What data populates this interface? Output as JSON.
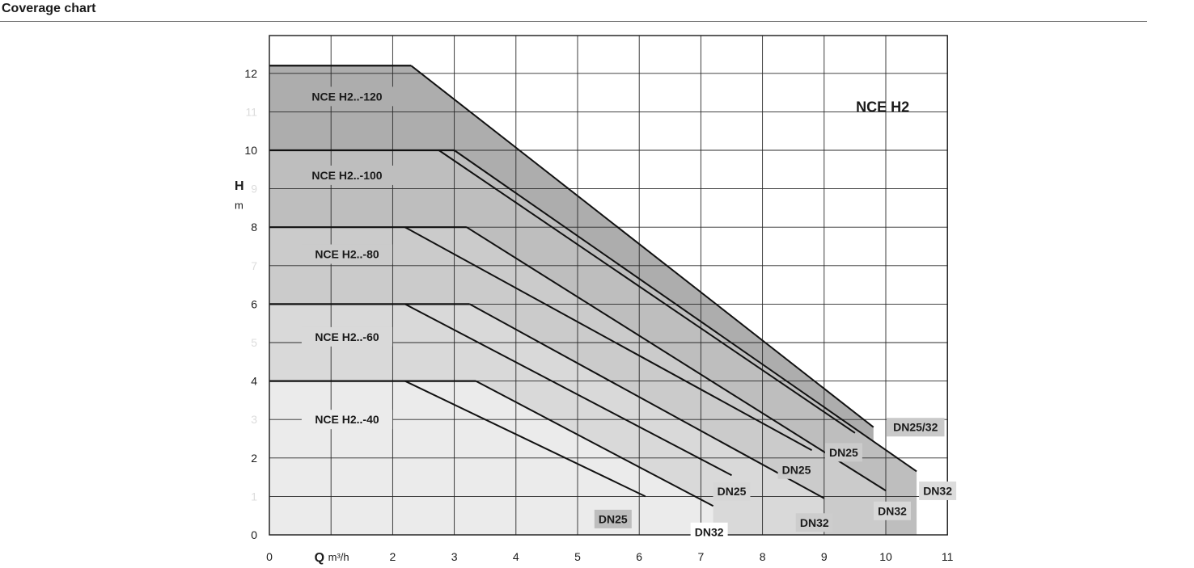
{
  "header": {
    "title": "Coverage chart"
  },
  "chart_data": {
    "type": "area",
    "title": "NCE H2",
    "xlabel": {
      "symbol": "Q",
      "unit": "m³/h"
    },
    "ylabel": {
      "symbol": "H",
      "unit": "m"
    },
    "xlim": [
      0,
      11
    ],
    "ylim": [
      0,
      13
    ],
    "x_ticks": [
      "0",
      "",
      "2",
      "3",
      "4",
      "5",
      "6",
      "7",
      "8",
      "9",
      "10",
      "11"
    ],
    "y_ticks": [
      "0",
      "1",
      "2",
      "3",
      "4",
      "5",
      "6",
      "7",
      "8",
      "9",
      "10",
      "11",
      "12"
    ],
    "y_ticks_faded": [
      "1",
      "3",
      "5",
      "7",
      "9",
      "11"
    ],
    "grid": true,
    "series": [
      {
        "name": "NCE H2..-40",
        "fill": "#ebebeb",
        "shelf": {
          "y": 4,
          "x_end": 3.35
        },
        "curves": [
          {
            "label": "DN25",
            "points": [
              [
                2.2,
                4
              ],
              [
                6.1,
                1.0
              ]
            ]
          },
          {
            "label": "DN32",
            "points": [
              [
                3.35,
                4
              ],
              [
                7.2,
                0.75
              ]
            ]
          }
        ]
      },
      {
        "name": "NCE H2..-60",
        "fill": "#d9d9d9",
        "shelf": {
          "y": 6,
          "x_end": 3.25
        },
        "curves": [
          {
            "label": "DN25",
            "points": [
              [
                2.2,
                6
              ],
              [
                7.5,
                1.55
              ]
            ]
          },
          {
            "label": "DN32",
            "points": [
              [
                3.25,
                6
              ],
              [
                9.0,
                0.95
              ]
            ]
          }
        ]
      },
      {
        "name": "NCE H2..-80",
        "fill": "#cbcbcb",
        "shelf": {
          "y": 8,
          "x_end": 3.2
        },
        "curves": [
          {
            "label": "DN25",
            "points": [
              [
                2.2,
                8
              ],
              [
                8.8,
                2.2
              ]
            ]
          },
          {
            "label": "DN32",
            "points": [
              [
                3.2,
                8
              ],
              [
                10.0,
                1.15
              ]
            ]
          }
        ]
      },
      {
        "name": "NCE H2..-100",
        "fill": "#bebebe",
        "shelf": {
          "y": 10,
          "x_end": 3.0
        },
        "curves": [
          {
            "label": "DN25",
            "points": [
              [
                2.75,
                10
              ],
              [
                9.5,
                2.65
              ]
            ]
          },
          {
            "label": "DN32",
            "points": [
              [
                3.0,
                10
              ],
              [
                10.5,
                1.65
              ]
            ]
          }
        ]
      },
      {
        "name": "NCE H2..-120",
        "fill": "#adadad",
        "shelf": {
          "y": 12.2,
          "x_end": 2.3
        },
        "curves": [
          {
            "label": "DN25/32",
            "points": [
              [
                2.3,
                12.2
              ],
              [
                9.8,
                2.8
              ]
            ]
          }
        ]
      }
    ]
  }
}
